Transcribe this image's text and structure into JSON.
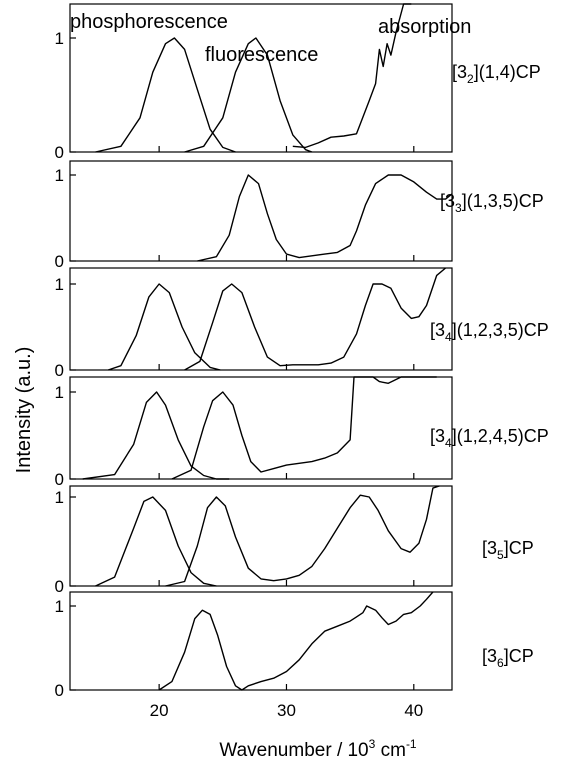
{
  "chart_data": {
    "type": "line",
    "xlabel_main": "Wavenumber / 10",
    "xlabel_exp": "3",
    "xlabel_unit": " cm",
    "xlabel_unit_exp": "-1",
    "ylabel": "Intensity (a.u.)",
    "xlim": [
      13,
      43
    ],
    "x_ticks": [
      "20",
      "30",
      "40"
    ],
    "x_tick_values": [
      20,
      30,
      40
    ],
    "y_ticks": [
      "0",
      "1"
    ],
    "headers": [
      "phosphorescence",
      "fluorescence",
      "absorption"
    ],
    "panels": [
      {
        "label": {
          "pre": "[3",
          "sub": "2",
          "post": "](1,4)CP"
        },
        "series": [
          {
            "x": [
              15,
              17,
              18.5,
              19.5,
              20.5,
              21.2,
              22,
              23,
              24,
              25,
              26
            ],
            "y": [
              0,
              0.05,
              0.3,
              0.7,
              0.95,
              1.0,
              0.9,
              0.55,
              0.2,
              0.04,
              0
            ]
          },
          {
            "x": [
              22,
              23.5,
              25,
              26,
              27,
              27.6,
              28.5,
              29.5,
              30.5,
              31.5,
              32
            ],
            "y": [
              0,
              0.05,
              0.3,
              0.7,
              0.95,
              1.0,
              0.85,
              0.45,
              0.15,
              0.02,
              0
            ]
          },
          {
            "x": [
              30.5,
              31.5,
              32.5,
              33.5,
              34.5,
              35.5,
              36.5,
              37,
              37.3,
              37.6,
              37.9,
              38.2,
              38.6,
              39.2,
              39.8
            ],
            "y": [
              0.05,
              0.04,
              0.08,
              0.13,
              0.14,
              0.16,
              0.45,
              0.6,
              0.9,
              0.75,
              0.95,
              0.85,
              1.05,
              1.35,
              1.6
            ]
          }
        ]
      },
      {
        "label": {
          "pre": "[3",
          "sub": "3",
          "post": "](1,3,5)CP"
        },
        "series": [
          {
            "x": [
              23,
              24.5,
              25.5,
              26.3,
              27,
              27.8,
              28.5,
              29.2,
              30,
              31,
              32,
              33,
              34,
              35,
              35.5,
              36.2,
              37,
              38,
              39,
              40,
              41,
              41.8,
              42.5,
              43
            ],
            "y": [
              0,
              0.05,
              0.3,
              0.75,
              1.0,
              0.9,
              0.55,
              0.25,
              0.08,
              0.04,
              0.06,
              0.08,
              0.1,
              0.18,
              0.35,
              0.65,
              0.9,
              1.0,
              1.0,
              0.92,
              0.8,
              0.72,
              0.72,
              0.78
            ]
          }
        ]
      },
      {
        "label": {
          "pre": "[3",
          "sub": "4",
          "post": "](1,2,3,5)CP"
        },
        "series": [
          {
            "x": [
              16,
              17,
              18.2,
              19.2,
              20,
              20.8,
              21.8,
              22.8,
              24,
              24.8
            ],
            "y": [
              0,
              0.05,
              0.4,
              0.85,
              1.0,
              0.9,
              0.5,
              0.2,
              0.03,
              0
            ]
          },
          {
            "x": [
              22,
              23.2,
              24.2,
              25,
              25.7,
              26.5,
              27.5,
              28.5,
              29.5,
              30.5,
              31.5,
              32.5,
              33.5,
              34.5,
              35.5,
              36.2,
              36.8,
              37.5,
              38.2,
              39,
              39.8,
              40.4,
              41,
              41.8,
              42.5
            ],
            "y": [
              0,
              0.1,
              0.55,
              0.92,
              1.0,
              0.9,
              0.5,
              0.15,
              0.05,
              0.06,
              0.06,
              0.06,
              0.08,
              0.15,
              0.42,
              0.75,
              1.0,
              1.0,
              0.95,
              0.72,
              0.6,
              0.62,
              0.75,
              1.1,
              1.45
            ]
          }
        ]
      },
      {
        "label": {
          "pre": "[3",
          "sub": "4",
          "post": "](1,2,4,5)CP"
        },
        "series": [
          {
            "x": [
              14,
              16.5,
              18,
              19,
              19.8,
              20.5,
              21.5,
              22.5,
              23.5,
              24.5,
              25.5
            ],
            "y": [
              0,
              0.05,
              0.4,
              0.88,
              1.0,
              0.85,
              0.45,
              0.15,
              0.04,
              0,
              0
            ]
          },
          {
            "x": [
              21,
              22.5,
              23.5,
              24.2,
              25,
              25.8,
              26.5,
              27.2,
              28,
              29,
              30,
              31,
              32,
              33,
              34,
              35,
              35.3,
              35.6,
              36,
              36.4,
              36.8,
              37.3,
              38,
              39,
              40,
              41,
              41.8
            ],
            "y": [
              0,
              0.1,
              0.6,
              0.9,
              1.0,
              0.85,
              0.5,
              0.2,
              0.08,
              0.12,
              0.16,
              0.18,
              0.2,
              0.24,
              0.3,
              0.45,
              1.2,
              1.35,
              1.3,
              1.18,
              1.22,
              1.12,
              1.1,
              1.22,
              1.35,
              1.55,
              1.8
            ]
          }
        ]
      },
      {
        "label": {
          "pre": "[3",
          "sub": "5",
          "post": "]CP"
        },
        "series": [
          {
            "x": [
              15,
              16.5,
              18,
              18.8,
              19.5,
              20.5,
              21.5,
              22.5,
              23.5,
              24.5
            ],
            "y": [
              0,
              0.1,
              0.65,
              0.95,
              1.0,
              0.85,
              0.45,
              0.15,
              0.03,
              0
            ]
          },
          {
            "x": [
              20.5,
              22,
              23,
              23.8,
              24.5,
              25.2,
              26,
              27,
              28,
              29,
              30,
              31,
              32,
              33,
              34,
              35,
              35.8,
              36.5,
              37.2,
              38,
              39,
              39.7,
              40.4,
              41,
              41.5,
              42
            ],
            "y": [
              0,
              0.05,
              0.45,
              0.88,
              1.0,
              0.9,
              0.55,
              0.2,
              0.08,
              0.06,
              0.08,
              0.12,
              0.22,
              0.42,
              0.65,
              0.88,
              1.02,
              1.0,
              0.85,
              0.62,
              0.42,
              0.38,
              0.48,
              0.75,
              1.1,
              1.3
            ]
          }
        ]
      },
      {
        "label": {
          "pre": "[3",
          "sub": "6",
          "post": "]CP"
        },
        "series": [
          {
            "x": [
              20,
              21,
              22,
              22.8,
              23.4,
              24,
              24.6,
              25.3,
              26,
              26.5,
              27,
              28,
              29,
              30,
              31,
              32,
              33,
              34,
              35,
              35.5,
              36,
              36.3,
              37,
              37.5,
              38,
              38.6,
              39.2,
              39.8,
              40.5,
              41,
              41.5
            ],
            "y": [
              0,
              0.1,
              0.45,
              0.85,
              0.95,
              0.9,
              0.65,
              0.28,
              0.05,
              0.0,
              0.05,
              0.1,
              0.14,
              0.22,
              0.36,
              0.55,
              0.7,
              0.76,
              0.82,
              0.87,
              0.92,
              1.0,
              0.95,
              0.86,
              0.78,
              0.82,
              0.9,
              0.92,
              1.0,
              1.08,
              1.2
            ]
          }
        ]
      }
    ]
  }
}
